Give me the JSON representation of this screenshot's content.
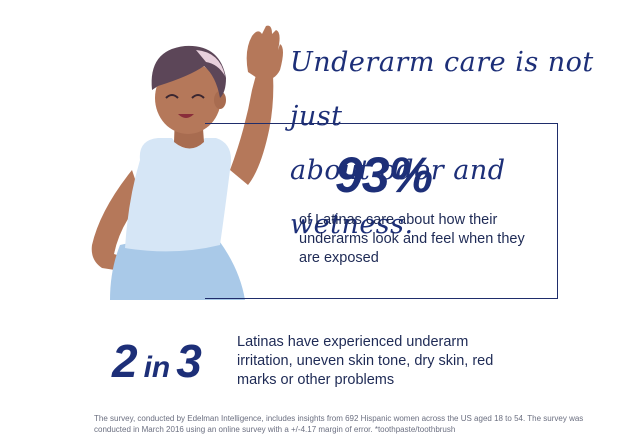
{
  "headline": {
    "line1": "Underarm care is not just",
    "line2": "about odor and wetness."
  },
  "stat1": {
    "value": "93%",
    "description": "of Latinas care about how their underarms look and feel when they are exposed"
  },
  "stat2": {
    "num1": "2",
    "joiner": "in",
    "num2": "3",
    "description": "Latinas have experienced underarm irritation, uneven skin tone, dry skin, red marks or other problems"
  },
  "footnote": "The survey, conducted by Edelman Intelligence, includes insights from 692 Hispanic women across the US aged 18 to 54. The survey was conducted in March 2016 using an online survey with a +/-4.17 margin of error. *toothpaste/toothbrush",
  "colors": {
    "navy": "#1d2f78",
    "skin": "#b5785a",
    "hair": "#5c4658",
    "top": "#d6e6f6",
    "skirt": "#a9c9e8"
  }
}
